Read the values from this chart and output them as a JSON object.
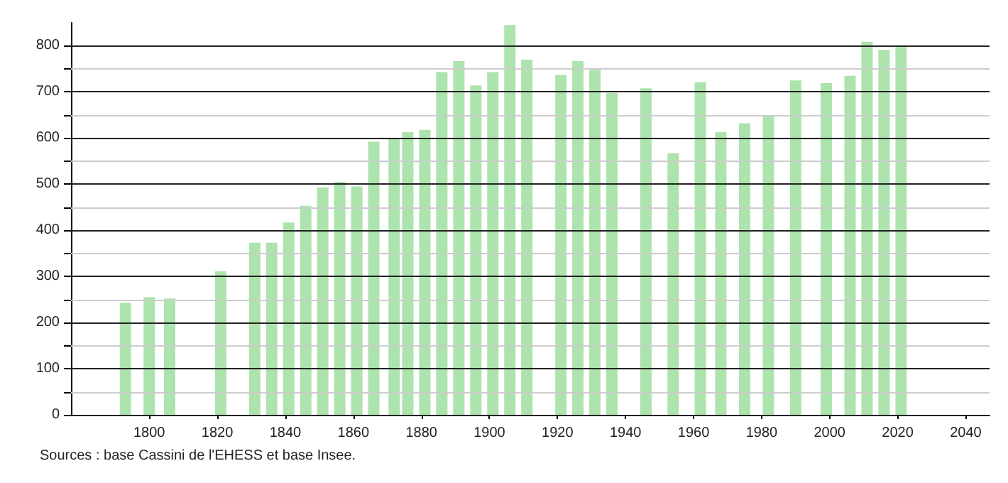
{
  "chart_data": {
    "type": "bar",
    "x": [
      1793,
      1800,
      1806,
      1821,
      1831,
      1836,
      1841,
      1846,
      1851,
      1856,
      1861,
      1866,
      1872,
      1876,
      1881,
      1886,
      1891,
      1896,
      1901,
      1906,
      1911,
      1921,
      1926,
      1931,
      1936,
      1946,
      1954,
      1962,
      1968,
      1975,
      1982,
      1990,
      1999,
      2006,
      2011,
      2016,
      2021
    ],
    "values": [
      243,
      255,
      252,
      311,
      373,
      373,
      417,
      453,
      493,
      505,
      495,
      592,
      598,
      613,
      618,
      743,
      767,
      714,
      743,
      845,
      770,
      737,
      767,
      748,
      698,
      708,
      567,
      721,
      613,
      632,
      649,
      725,
      719,
      735,
      809,
      791,
      801
    ],
    "color": "#ade3ad",
    "xlim": [
      1777,
      2047
    ],
    "xticks": [
      1800,
      1820,
      1840,
      1860,
      1880,
      1900,
      1920,
      1940,
      1960,
      1980,
      2000,
      2020,
      2040
    ],
    "ylim": [
      0,
      850
    ],
    "yticks": [
      0,
      {
        "value": 50,
        "label": null
      },
      100,
      {
        "value": 150,
        "label": null
      },
      200,
      {
        "value": 250,
        "label": null
      },
      300,
      {
        "value": 350,
        "label": null
      },
      400,
      {
        "value": 450,
        "label": null
      },
      500,
      {
        "value": 550,
        "label": null
      },
      600,
      {
        "value": 650,
        "label": null
      },
      700,
      {
        "value": 750,
        "label": null
      },
      800
    ],
    "grid": "y",
    "annotations": [
      "Sources : base Cassini de l'EHESS et base Insee."
    ]
  }
}
